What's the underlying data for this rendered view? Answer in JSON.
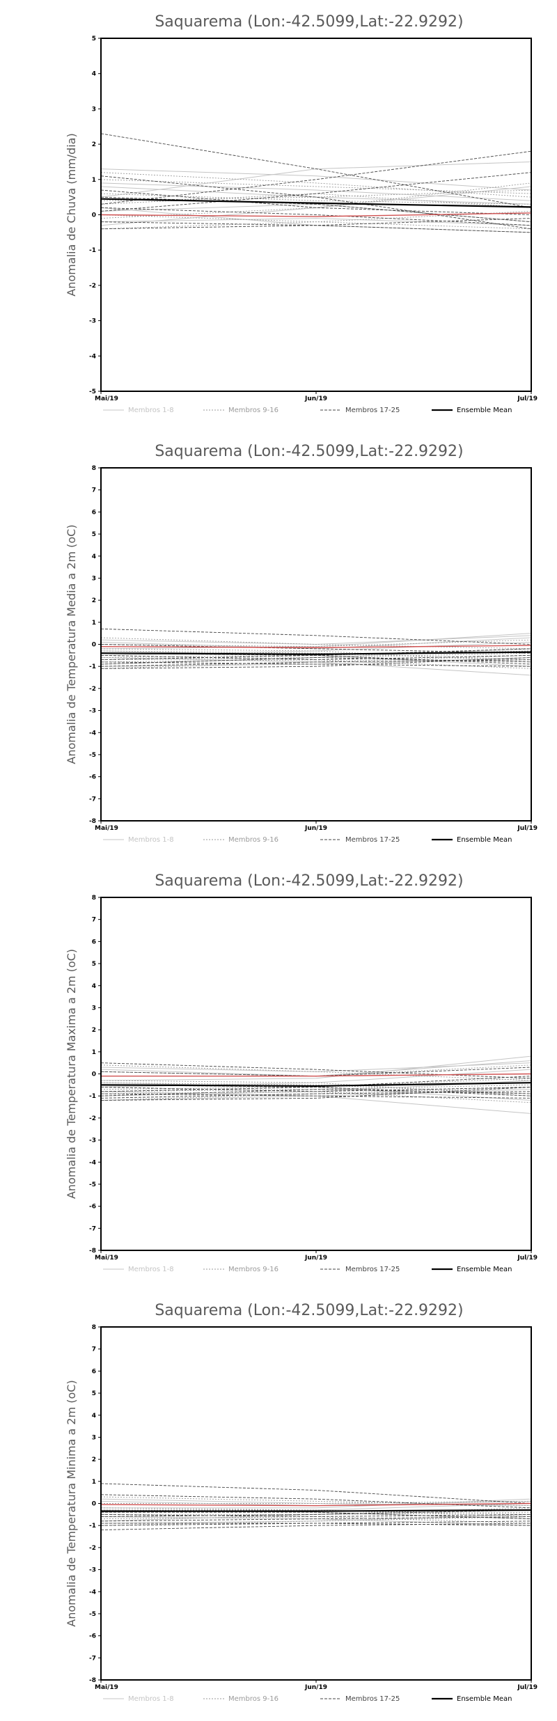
{
  "colors": {
    "members_1_8": "#c4c4c4",
    "members_9_16": "#9a9a9a",
    "members_17_25": "#444444",
    "ensemble_mean": "#000000",
    "highlight_member": "#d05050",
    "frame": "#000000"
  },
  "legend": [
    {
      "label": "Membros 1-8",
      "style": "members_1_8"
    },
    {
      "label": "Membros 9-16",
      "style": "members_9_16"
    },
    {
      "label": "Membros 17-25",
      "style": "members_17_25"
    },
    {
      "label": "Ensemble Mean",
      "style": "ensemble_mean"
    }
  ],
  "chart_data": [
    {
      "type": "line",
      "title": "Saquarema (Lon:-42.5099,Lat:-22.9292)",
      "ylabel": "Anomalia de Chuva (mm/dia)",
      "x": [
        "Mai/19",
        "Jun/19",
        "Jul/19"
      ],
      "ylim": [
        -5,
        5
      ],
      "yticks": [
        -5,
        -4,
        -3,
        -2,
        -1,
        0,
        1,
        2,
        3,
        4,
        5
      ],
      "grid": false,
      "legend_position": "bottom",
      "ensemble_mean": [
        0.45,
        0.33,
        0.22
      ],
      "highlight": [
        0.0,
        -0.05,
        0.05
      ],
      "members_1_8": [
        [
          1.3,
          1.1,
          0.7
        ],
        [
          0.5,
          1.3,
          1.5
        ],
        [
          -0.3,
          0.2,
          0.8
        ],
        [
          0.2,
          -0.3,
          -0.5
        ],
        [
          0.8,
          0.5,
          0.3
        ],
        [
          -0.2,
          -0.1,
          -0.3
        ],
        [
          0.9,
          0.7,
          0.4
        ],
        [
          0.1,
          0.3,
          -0.2
        ]
      ],
      "members_9_16": [
        [
          1.2,
          0.9,
          0.5
        ],
        [
          0.6,
          0.4,
          0.3
        ],
        [
          -0.1,
          0.2,
          0.9
        ],
        [
          0.0,
          -0.2,
          -0.4
        ],
        [
          0.3,
          0.6,
          0.2
        ],
        [
          1.0,
          0.8,
          0.6
        ],
        [
          -0.4,
          -0.2,
          0.1
        ],
        [
          0.4,
          0.5,
          0.7
        ]
      ],
      "members_17_25": [
        [
          2.3,
          1.3,
          0.2
        ],
        [
          0.3,
          1.0,
          1.8
        ],
        [
          1.1,
          0.5,
          -0.4
        ],
        [
          -0.4,
          -0.3,
          -0.1
        ],
        [
          0.5,
          0.3,
          -0.2
        ],
        [
          0.1,
          0.6,
          1.2
        ],
        [
          -0.2,
          -0.3,
          -0.5
        ],
        [
          0.7,
          0.2,
          0.0
        ],
        [
          0.2,
          0.0,
          -0.3
        ]
      ]
    },
    {
      "type": "line",
      "title": "Saquarema (Lon:-42.5099,Lat:-22.9292)",
      "ylabel": "Anomalia de Temperatura Media a 2m (oC)",
      "x": [
        "Mai/19",
        "Jun/19",
        "Jul/19"
      ],
      "ylim": [
        -8,
        8
      ],
      "yticks": [
        -8,
        -7,
        -6,
        -5,
        -4,
        -3,
        -2,
        -1,
        0,
        1,
        2,
        3,
        4,
        5,
        6,
        7,
        8
      ],
      "grid": false,
      "legend_position": "bottom",
      "ensemble_mean": [
        -0.4,
        -0.45,
        -0.35
      ],
      "highlight": [
        -0.1,
        -0.15,
        -0.05
      ],
      "members_1_8": [
        [
          -0.2,
          -0.1,
          0.5
        ],
        [
          -0.6,
          -0.8,
          -1.4
        ],
        [
          0.1,
          -0.2,
          0.3
        ],
        [
          -0.9,
          -0.6,
          -0.2
        ],
        [
          -0.3,
          -0.5,
          -1.0
        ],
        [
          0.2,
          0.0,
          0.4
        ],
        [
          -1.0,
          -0.9,
          -0.6
        ],
        [
          -0.5,
          -0.3,
          0.1
        ]
      ],
      "members_9_16": [
        [
          -0.3,
          -0.4,
          -0.7
        ],
        [
          0.0,
          -0.1,
          0.2
        ],
        [
          -0.8,
          -0.7,
          -1.1
        ],
        [
          -0.6,
          -0.5,
          -0.3
        ],
        [
          0.3,
          0.0,
          -0.2
        ],
        [
          -1.1,
          -0.8,
          -0.5
        ],
        [
          -0.2,
          -0.3,
          -0.8
        ],
        [
          -0.7,
          -0.6,
          -0.4
        ]
      ],
      "members_17_25": [
        [
          0.7,
          0.4,
          0.0
        ],
        [
          -1.0,
          -0.8,
          -0.7
        ],
        [
          -0.4,
          -0.5,
          -0.9
        ],
        [
          -1.1,
          -1.0,
          -0.6
        ],
        [
          -0.7,
          -0.5,
          -0.2
        ],
        [
          0.0,
          -0.2,
          -0.4
        ],
        [
          -0.8,
          -0.9,
          -1.0
        ],
        [
          -0.5,
          -0.7,
          -0.5
        ],
        [
          -0.9,
          -0.6,
          -0.8
        ]
      ]
    },
    {
      "type": "line",
      "title": "Saquarema (Lon:-42.5099,Lat:-22.9292)",
      "ylabel": "Anomalia de Temperatura Maxima a 2m (oC)",
      "x": [
        "Mai/19",
        "Jun/19",
        "Jul/19"
      ],
      "ylim": [
        -8,
        8
      ],
      "yticks": [
        -8,
        -7,
        -6,
        -5,
        -4,
        -3,
        -2,
        -1,
        0,
        1,
        2,
        3,
        4,
        5,
        6,
        7,
        8
      ],
      "grid": false,
      "legend_position": "bottom",
      "ensemble_mean": [
        -0.5,
        -0.55,
        -0.4
      ],
      "highlight": [
        -0.1,
        -0.1,
        0.0
      ],
      "members_1_8": [
        [
          -0.3,
          -0.2,
          0.8
        ],
        [
          -0.8,
          -1.0,
          -1.8
        ],
        [
          0.2,
          -0.1,
          0.6
        ],
        [
          -1.0,
          -0.8,
          -0.3
        ],
        [
          -0.4,
          -0.6,
          -1.2
        ],
        [
          0.3,
          0.1,
          0.5
        ],
        [
          -1.2,
          -1.0,
          -0.7
        ],
        [
          -0.6,
          -0.4,
          0.2
        ]
      ],
      "members_9_16": [
        [
          -0.4,
          -0.5,
          -0.9
        ],
        [
          0.1,
          -0.1,
          0.4
        ],
        [
          -0.9,
          -0.8,
          -1.3
        ],
        [
          -0.7,
          -0.6,
          -0.2
        ],
        [
          0.4,
          0.1,
          -0.3
        ],
        [
          -1.2,
          -0.9,
          -0.6
        ],
        [
          -0.3,
          -0.4,
          -1.0
        ],
        [
          -0.8,
          -0.7,
          -0.5
        ]
      ],
      "members_17_25": [
        [
          0.5,
          0.2,
          -0.2
        ],
        [
          -1.1,
          -0.9,
          -0.8
        ],
        [
          -0.5,
          -0.6,
          -1.0
        ],
        [
          -1.2,
          -1.1,
          -0.6
        ],
        [
          -0.8,
          -0.6,
          -0.1
        ],
        [
          0.1,
          -0.1,
          0.3
        ],
        [
          -0.9,
          -1.0,
          -1.1
        ],
        [
          -0.6,
          -0.8,
          -0.6
        ],
        [
          -1.0,
          -0.7,
          -0.9
        ]
      ]
    },
    {
      "type": "line",
      "title": "Saquarema (Lon:-42.5099,Lat:-22.9292)",
      "ylabel": "Anomalia de Temperatura Minima a 2m (oC)",
      "x": [
        "Mai/19",
        "Jun/19",
        "Jul/19"
      ],
      "ylim": [
        -8,
        8
      ],
      "yticks": [
        -8,
        -7,
        -6,
        -5,
        -4,
        -3,
        -2,
        -1,
        0,
        1,
        2,
        3,
        4,
        5,
        6,
        7,
        8
      ],
      "grid": false,
      "legend_position": "bottom",
      "ensemble_mean": [
        -0.35,
        -0.35,
        -0.3
      ],
      "highlight": [
        -0.05,
        -0.1,
        0.0
      ],
      "members_1_8": [
        [
          -0.2,
          -0.2,
          0.2
        ],
        [
          -0.6,
          -0.7,
          -1.0
        ],
        [
          0.1,
          -0.1,
          0.1
        ],
        [
          -0.8,
          -0.5,
          -0.3
        ],
        [
          -0.3,
          -0.4,
          -0.7
        ],
        [
          0.2,
          0.0,
          -0.1
        ],
        [
          -0.9,
          -0.8,
          -0.5
        ],
        [
          -0.4,
          -0.3,
          0.0
        ]
      ],
      "members_9_16": [
        [
          -0.3,
          -0.3,
          -0.5
        ],
        [
          0.0,
          0.0,
          0.1
        ],
        [
          -0.7,
          -0.6,
          -0.9
        ],
        [
          -0.5,
          -0.5,
          -0.2
        ],
        [
          0.3,
          0.1,
          -0.1
        ],
        [
          -1.0,
          -0.8,
          -0.6
        ],
        [
          -0.2,
          -0.3,
          -0.6
        ],
        [
          -0.6,
          -0.5,
          -0.4
        ]
      ],
      "members_17_25": [
        [
          0.9,
          0.6,
          0.0
        ],
        [
          -1.0,
          -0.9,
          -0.8
        ],
        [
          -0.4,
          -0.4,
          -0.7
        ],
        [
          -1.2,
          -1.0,
          -0.9
        ],
        [
          -0.6,
          -0.5,
          -0.3
        ],
        [
          0.4,
          0.2,
          -0.2
        ],
        [
          -0.9,
          -0.9,
          -1.0
        ],
        [
          -0.5,
          -0.6,
          -0.5
        ],
        [
          -0.8,
          -0.7,
          -0.6
        ]
      ]
    }
  ]
}
